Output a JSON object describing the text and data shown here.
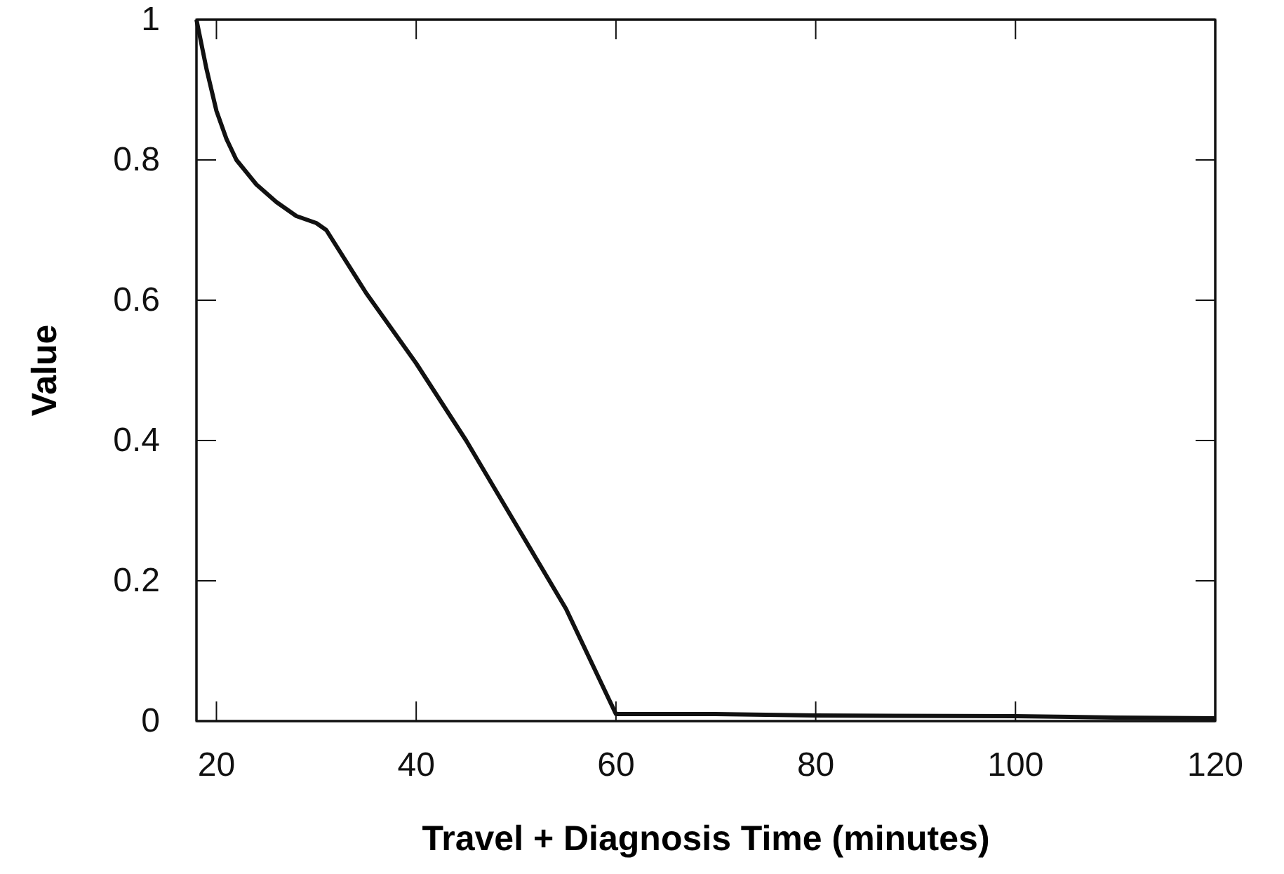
{
  "chart_data": {
    "type": "line",
    "xlabel": "Travel + Diagnosis Time (minutes)",
    "ylabel": "Value",
    "series": [
      {
        "color": "#111111",
        "x": [
          18,
          19,
          20,
          21,
          22,
          24,
          26,
          28,
          30,
          31,
          35,
          40,
          45,
          50,
          55,
          60,
          70,
          80,
          100,
          110,
          120
        ],
        "values": [
          1,
          0.93,
          0.87,
          0.83,
          0.8,
          0.765,
          0.74,
          0.72,
          0.71,
          0.7,
          0.61,
          0.51,
          0.4,
          0.28,
          0.16,
          0.01,
          0.01,
          0.008,
          0.007,
          0.005,
          0.004
        ]
      }
    ],
    "xlim": [
      18,
      120
    ],
    "xticks": [
      20,
      40,
      60,
      80,
      100,
      120
    ],
    "ylim": [
      0,
      1
    ],
    "yticks": [
      0,
      0.2,
      0.4,
      0.6,
      0.8,
      1
    ],
    "grid": false,
    "marker": "none",
    "line_style": "solid"
  }
}
